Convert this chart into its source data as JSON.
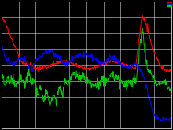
{
  "background_color": "#000000",
  "grid_color": "#ffffff",
  "fig_facecolor": "#000000",
  "ax_facecolor": "#000000",
  "line_colors": [
    "#ff0000",
    "#0000ff",
    "#00cc00"
  ],
  "line_width": 0.7,
  "legend_loc": "upper right",
  "n_points": 430,
  "ylim": [
    0.0,
    1.0
  ],
  "xlim": [
    0,
    429
  ],
  "grid_nx": 11,
  "grid_ny": 9
}
